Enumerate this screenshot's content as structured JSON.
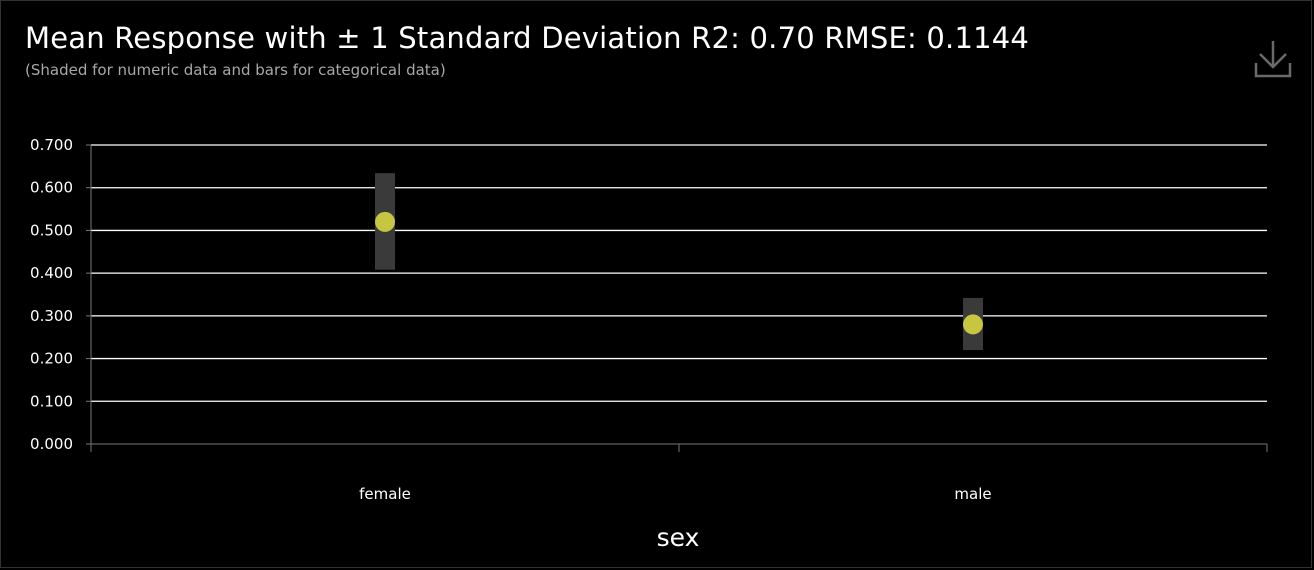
{
  "header": {
    "title": "Mean Response with ± 1 Standard Deviation R2: 0.70 RMSE: 0.1144",
    "subtitle": "(Shaded for numeric data and bars for categorical data)",
    "download_icon": "download-icon"
  },
  "colors": {
    "background": "#000000",
    "grid": "#ffffff",
    "axis": "#777777",
    "point": "#c7c640",
    "std_bar": "#3a3a3a",
    "text": "#ffffff",
    "subtitle": "#a8a8a8"
  },
  "chart_data": {
    "type": "scatter",
    "xlabel": "sex",
    "ylabel": "",
    "categories": [
      "female",
      "male"
    ],
    "series": [
      {
        "mean": [
          0.52,
          0.28
        ],
        "lower": [
          0.408,
          0.22
        ],
        "upper": [
          0.634,
          0.342
        ]
      }
    ],
    "ylim": [
      0.0,
      0.7
    ],
    "yticks": [
      "0.000",
      "0.100",
      "0.200",
      "0.300",
      "0.400",
      "0.500",
      "0.600",
      "0.700"
    ],
    "grid": true,
    "legend": "none"
  }
}
